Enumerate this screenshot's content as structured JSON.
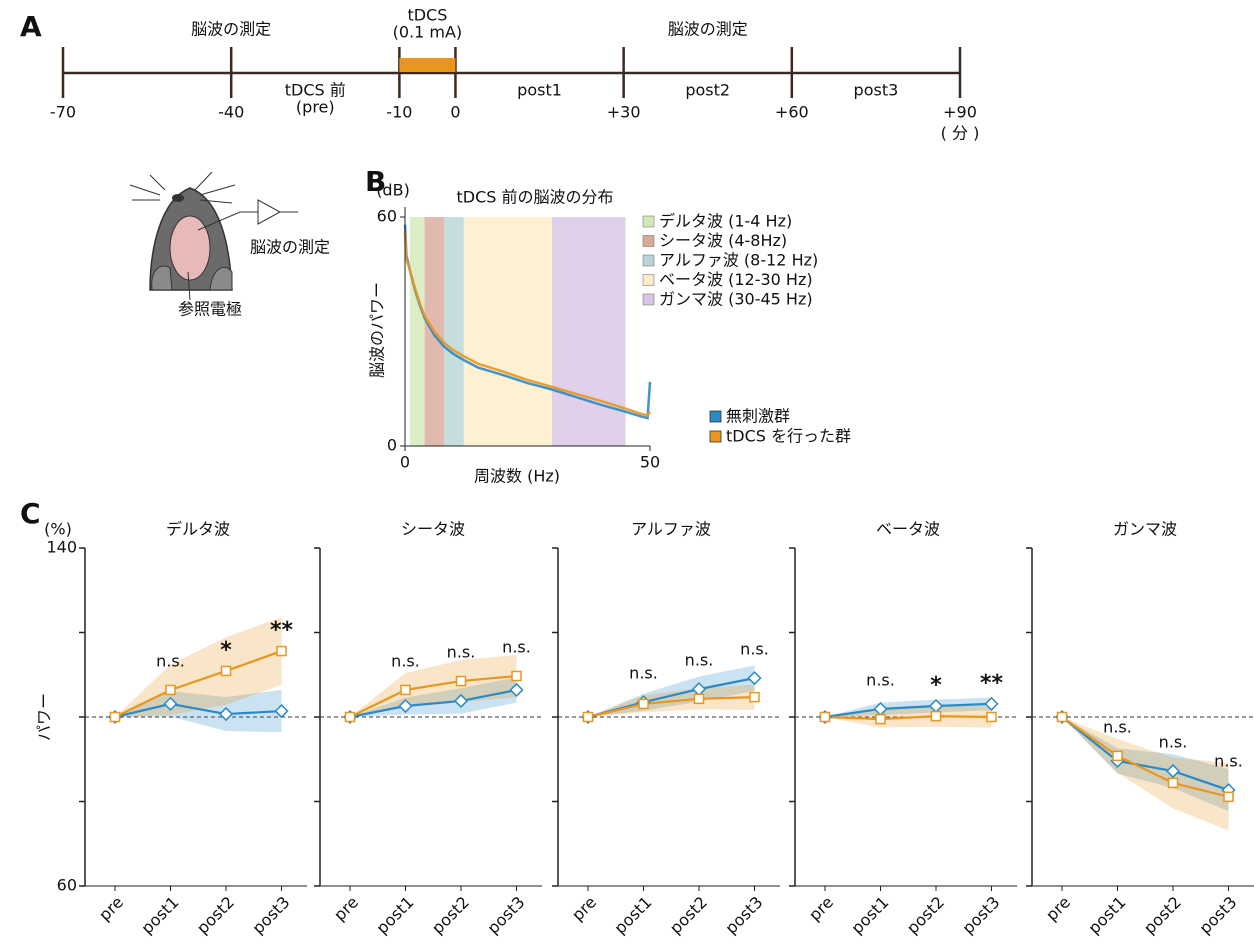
{
  "panel_labels": [
    "A",
    "B",
    "C"
  ],
  "timeline": {
    "xlim": [
      -70,
      90
    ],
    "xticks": [
      -70,
      -40,
      -10,
      0,
      {
        "value": 30,
        "label": "+30"
      },
      {
        "value": 60,
        "label": "+60"
      },
      {
        "value": 90,
        "label": "+90"
      }
    ],
    "unit": "( 分 )",
    "stimulation": {
      "label": [
        "tDCS",
        "(0.1 mA)"
      ],
      "range": [
        -10,
        0
      ],
      "color": "#e8961e"
    },
    "above": [
      {
        "label": "脳波の測定",
        "range": [
          -70,
          -10
        ]
      },
      {
        "label": "脳波の測定",
        "range": [
          0,
          90
        ]
      }
    ],
    "below": [
      {
        "label": [
          "tDCS 前",
          "(pre)"
        ],
        "range": [
          -40,
          -10
        ]
      },
      {
        "label": "post1",
        "range": [
          0,
          30
        ]
      },
      {
        "label": "post2",
        "range": [
          30,
          60
        ]
      },
      {
        "label": "post3",
        "range": [
          60,
          90
        ]
      }
    ]
  },
  "illustration": {
    "recording": "脳波の測定",
    "reference": "参照電極"
  },
  "chart_data": [
    {
      "type": "line",
      "title": "tDCS 前の脳波の分布",
      "y_unit": "(dB)",
      "ylabel": "脳波のパワー",
      "xlabel": "周波数 (Hz)",
      "xlim": [
        0,
        50
      ],
      "xticks": [
        0,
        50
      ],
      "ylim": [
        0,
        60
      ],
      "yticks": [
        0,
        60
      ],
      "bands": [
        {
          "name": "デルタ波 (1-4 Hz)",
          "range": [
            1,
            4
          ],
          "color": "#d5e8b8"
        },
        {
          "name": "シータ波 (4-8Hz)",
          "range": [
            4,
            8
          ],
          "color": "#dba89a"
        },
        {
          "name": "アルファ波 (8-12 Hz)",
          "range": [
            8,
            12
          ],
          "color": "#b8d4d4"
        },
        {
          "name": "ベータ波 (12-30 Hz)",
          "range": [
            12,
            30
          ],
          "color": "#fcecc8"
        },
        {
          "name": "ガンマ波 (30-45 Hz)",
          "range": [
            30,
            45
          ],
          "color": "#d8c4e4"
        }
      ],
      "x": [
        0,
        0.3,
        1,
        2,
        3,
        4,
        6,
        8,
        10,
        12,
        15,
        20,
        25,
        30,
        35,
        40,
        45,
        48,
        49.5,
        50
      ],
      "series": [
        {
          "name": "無刺激群",
          "color": "#2a8ac6",
          "values": [
            58,
            50,
            46,
            41,
            37,
            33.5,
            29,
            26,
            24,
            22.5,
            20.5,
            18.6,
            16.5,
            14.8,
            12.8,
            10.8,
            9,
            7.8,
            7.3,
            16.8
          ]
        },
        {
          "name": "tDCS を行った群",
          "color": "#e8961e",
          "values": [
            56,
            49,
            46,
            41.5,
            37.5,
            34,
            30,
            27,
            25,
            23.5,
            21.5,
            19.5,
            17.3,
            15.5,
            13.6,
            11.8,
            9.8,
            8.5,
            8,
            9
          ]
        }
      ]
    },
    {
      "type": "panels",
      "unit": "(%)",
      "ylabel": "パワー",
      "ylim": [
        60,
        140
      ],
      "yticks": [
        60,
        140
      ],
      "minor_yticks": [
        80,
        100,
        120
      ],
      "reference": 100,
      "categories": [
        "pre",
        "post1",
        "post2",
        "post3"
      ],
      "panels": [
        {
          "title": "デルタ波",
          "annotations": [
            null,
            "n.s.",
            "*",
            "**"
          ],
          "series": [
            {
              "color": "#2a8ac6",
              "marker": "diamond",
              "values": [
                100,
                103.1,
                100.7,
                101.4
              ],
              "errors": [
                0,
                3,
                4,
                5
              ]
            },
            {
              "color": "#e8961e",
              "marker": "square",
              "values": [
                100,
                106.4,
                110.9,
                115.6
              ],
              "errors": [
                0,
                6,
                8,
                8
              ]
            }
          ]
        },
        {
          "title": "シータ波",
          "annotations": [
            null,
            "n.s.",
            "n.s.",
            "n.s."
          ],
          "series": [
            {
              "color": "#2a8ac6",
              "marker": "diamond",
              "values": [
                100,
                102.6,
                103.8,
                106.4
              ],
              "errors": [
                0,
                2,
                3,
                3
              ]
            },
            {
              "color": "#e8961e",
              "marker": "square",
              "values": [
                100,
                106.4,
                108.5,
                109.7
              ],
              "errors": [
                0,
                4,
                5,
                5
              ]
            }
          ]
        },
        {
          "title": "アルファ波",
          "annotations": [
            null,
            "n.s.",
            "n.s.",
            "n.s."
          ],
          "series": [
            {
              "color": "#2a8ac6",
              "marker": "diamond",
              "values": [
                100,
                103.5,
                106.6,
                109.2
              ],
              "errors": [
                0,
                2,
                3,
                3
              ]
            },
            {
              "color": "#e8961e",
              "marker": "square",
              "values": [
                100,
                103.1,
                104.3,
                104.7
              ],
              "errors": [
                0,
                2,
                2.5,
                3
              ]
            }
          ]
        },
        {
          "title": "ベータ波",
          "annotations": [
            null,
            "n.s.",
            "*",
            "**"
          ],
          "series": [
            {
              "color": "#2a8ac6",
              "marker": "diamond",
              "values": [
                100,
                101.9,
                102.6,
                103.1
              ],
              "errors": [
                0,
                1.5,
                1.5,
                1.5
              ]
            },
            {
              "color": "#e8961e",
              "marker": "square",
              "values": [
                100,
                99.5,
                100.2,
                100
              ],
              "errors": [
                0,
                2,
                2.5,
                2.5
              ]
            }
          ]
        },
        {
          "title": "ガンマ波",
          "annotations": [
            null,
            "n.s.",
            "n.s.",
            "n.s."
          ],
          "series": [
            {
              "color": "#2a8ac6",
              "marker": "diamond",
              "values": [
                100,
                89.6,
                87.2,
                82.7
              ],
              "errors": [
                0,
                3,
                4,
                5
              ]
            },
            {
              "color": "#e8961e",
              "marker": "square",
              "values": [
                100,
                90.8,
                84.4,
                81.1
              ],
              "errors": [
                0,
                4,
                6,
                8
              ]
            }
          ]
        }
      ]
    }
  ]
}
